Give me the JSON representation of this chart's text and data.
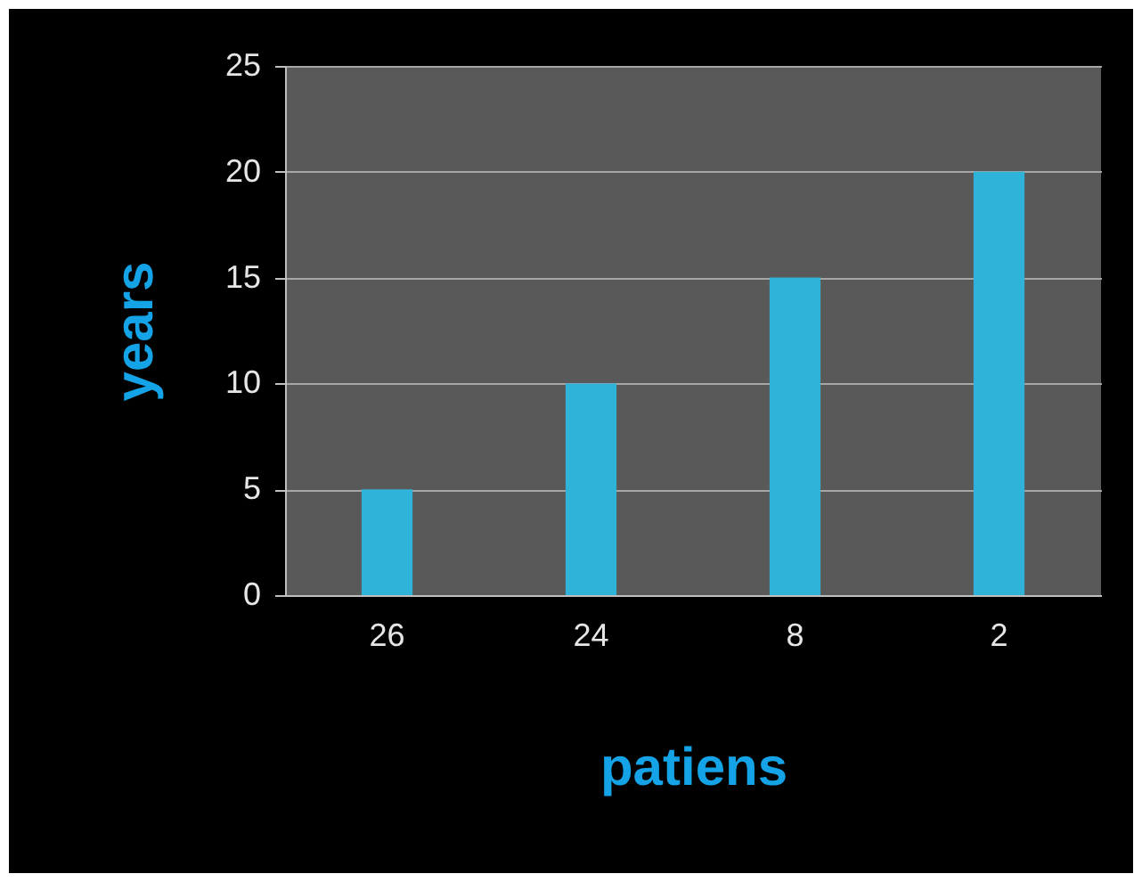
{
  "chart_data": {
    "type": "bar",
    "xlabel": "patiens",
    "ylabel": "years",
    "categories": [
      "26",
      "24",
      "8",
      "2"
    ],
    "values": [
      5,
      10,
      15,
      20
    ],
    "color": "#2fb3d8",
    "ylim": [
      0,
      25
    ],
    "yticks": [
      0,
      5,
      10,
      15,
      20,
      25
    ],
    "grid": true
  }
}
